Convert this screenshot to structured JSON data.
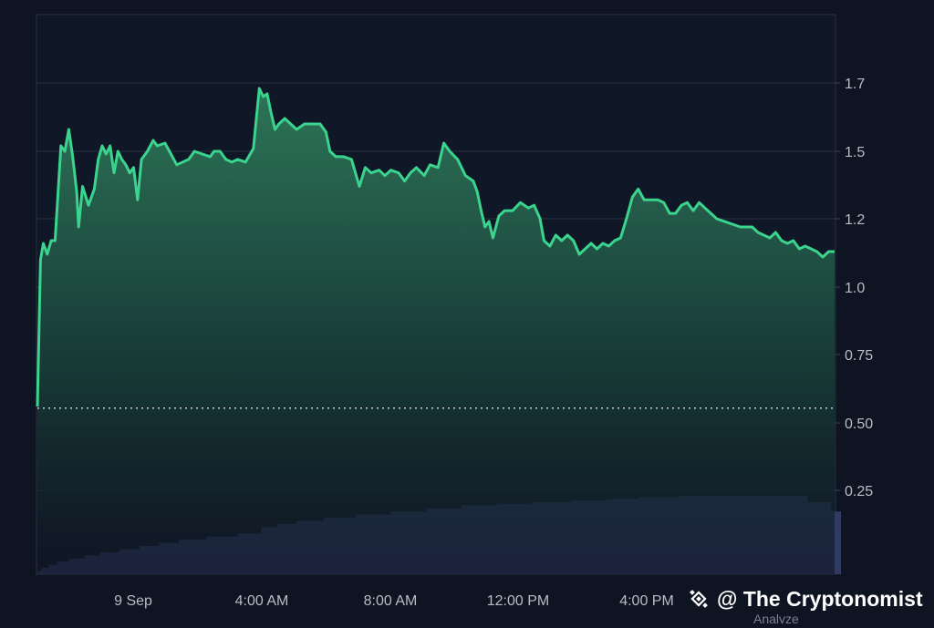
{
  "watermark": {
    "text": "@ The Cryptonomist",
    "icon": "binance-diamond-icon"
  },
  "background_label": "Analyze",
  "chart_data": {
    "type": "area",
    "title": "",
    "xlabel": "",
    "ylabel": "",
    "grid": true,
    "colors": {
      "background": "#0f1422",
      "grid": "#2a3142",
      "line": "#3bd48f",
      "fill_top": "#2e7a5a",
      "volume": "#2f3a66",
      "baseline": "#c8ccd6"
    },
    "x_ticks": [
      "9 Sep",
      "4:00 AM",
      "8:00 AM",
      "12:00 PM",
      "4:00 PM"
    ],
    "x_range": [
      0,
      24.6
    ],
    "y_ticks": [
      "1.7",
      "1.5",
      "1.2",
      "1.0",
      "0.75",
      "0.50",
      "0.25"
    ],
    "y_tick_values": [
      1.75,
      1.5,
      1.25,
      1.0,
      0.75,
      0.5,
      0.25
    ],
    "ylim": [
      0.25,
      2.0
    ],
    "reference_line": 0.554,
    "series": [
      {
        "values": [
          [
            0,
            0.56
          ],
          [
            0.08,
            1.1
          ],
          [
            0.15,
            1.16
          ],
          [
            0.25,
            1.12
          ],
          [
            0.35,
            1.17
          ],
          [
            0.45,
            1.17
          ],
          [
            0.6,
            1.52
          ],
          [
            0.7,
            1.5
          ],
          [
            0.8,
            1.58
          ],
          [
            0.9,
            1.48
          ],
          [
            1.0,
            1.35
          ],
          [
            1.05,
            1.22
          ],
          [
            1.15,
            1.37
          ],
          [
            1.3,
            1.3
          ],
          [
            1.45,
            1.36
          ],
          [
            1.55,
            1.47
          ],
          [
            1.65,
            1.52
          ],
          [
            1.75,
            1.49
          ],
          [
            1.85,
            1.52
          ],
          [
            1.95,
            1.42
          ],
          [
            2.05,
            1.5
          ],
          [
            2.15,
            1.47
          ],
          [
            2.25,
            1.45
          ],
          [
            2.35,
            1.42
          ],
          [
            2.45,
            1.44
          ],
          [
            2.55,
            1.32
          ],
          [
            2.65,
            1.47
          ],
          [
            2.8,
            1.5
          ],
          [
            2.95,
            1.54
          ],
          [
            3.05,
            1.52
          ],
          [
            3.25,
            1.53
          ],
          [
            3.4,
            1.49
          ],
          [
            3.55,
            1.45
          ],
          [
            3.7,
            1.46
          ],
          [
            3.85,
            1.47
          ],
          [
            4.0,
            1.5
          ],
          [
            4.2,
            1.49
          ],
          [
            4.4,
            1.48
          ],
          [
            4.5,
            1.5
          ],
          [
            4.65,
            1.5
          ],
          [
            4.8,
            1.47
          ],
          [
            4.95,
            1.46
          ],
          [
            5.1,
            1.47
          ],
          [
            5.3,
            1.46
          ],
          [
            5.5,
            1.51
          ],
          [
            5.65,
            1.73
          ],
          [
            5.75,
            1.7
          ],
          [
            5.85,
            1.71
          ],
          [
            5.95,
            1.64
          ],
          [
            6.05,
            1.58
          ],
          [
            6.15,
            1.6
          ],
          [
            6.3,
            1.62
          ],
          [
            6.45,
            1.6
          ],
          [
            6.6,
            1.58
          ],
          [
            6.8,
            1.6
          ],
          [
            7.0,
            1.6
          ],
          [
            7.2,
            1.6
          ],
          [
            7.35,
            1.57
          ],
          [
            7.45,
            1.5
          ],
          [
            7.6,
            1.48
          ],
          [
            7.8,
            1.48
          ],
          [
            8.0,
            1.47
          ],
          [
            8.1,
            1.42
          ],
          [
            8.2,
            1.37
          ],
          [
            8.35,
            1.44
          ],
          [
            8.5,
            1.42
          ],
          [
            8.7,
            1.43
          ],
          [
            8.85,
            1.41
          ],
          [
            9.0,
            1.43
          ],
          [
            9.2,
            1.42
          ],
          [
            9.35,
            1.39
          ],
          [
            9.5,
            1.42
          ],
          [
            9.65,
            1.44
          ],
          [
            9.85,
            1.41
          ],
          [
            10.0,
            1.45
          ],
          [
            10.2,
            1.44
          ],
          [
            10.35,
            1.53
          ],
          [
            10.5,
            1.5
          ],
          [
            10.7,
            1.47
          ],
          [
            10.9,
            1.41
          ],
          [
            11.1,
            1.39
          ],
          [
            11.2,
            1.35
          ],
          [
            11.3,
            1.28
          ],
          [
            11.4,
            1.22
          ],
          [
            11.5,
            1.24
          ],
          [
            11.6,
            1.18
          ],
          [
            11.75,
            1.26
          ],
          [
            11.9,
            1.28
          ],
          [
            12.1,
            1.28
          ],
          [
            12.3,
            1.31
          ],
          [
            12.5,
            1.29
          ],
          [
            12.65,
            1.3
          ],
          [
            12.8,
            1.25
          ],
          [
            12.9,
            1.17
          ],
          [
            13.05,
            1.15
          ],
          [
            13.2,
            1.19
          ],
          [
            13.35,
            1.17
          ],
          [
            13.5,
            1.19
          ],
          [
            13.65,
            1.17
          ],
          [
            13.8,
            1.12
          ],
          [
            13.95,
            1.14
          ],
          [
            14.1,
            1.16
          ],
          [
            14.25,
            1.14
          ],
          [
            14.4,
            1.16
          ],
          [
            14.55,
            1.15
          ],
          [
            14.7,
            1.17
          ],
          [
            14.85,
            1.18
          ],
          [
            15.0,
            1.25
          ],
          [
            15.15,
            1.33
          ],
          [
            15.3,
            1.36
          ],
          [
            15.45,
            1.32
          ],
          [
            15.6,
            1.32
          ],
          [
            15.8,
            1.32
          ],
          [
            15.95,
            1.31
          ],
          [
            16.1,
            1.27
          ],
          [
            16.25,
            1.27
          ],
          [
            16.4,
            1.3
          ],
          [
            16.55,
            1.31
          ],
          [
            16.7,
            1.28
          ],
          [
            16.85,
            1.31
          ],
          [
            17.0,
            1.29
          ],
          [
            17.15,
            1.27
          ],
          [
            17.3,
            1.25
          ],
          [
            17.5,
            1.24
          ],
          [
            17.7,
            1.23
          ],
          [
            17.9,
            1.22
          ],
          [
            18.05,
            1.22
          ],
          [
            18.2,
            1.22
          ],
          [
            18.35,
            1.2
          ],
          [
            18.5,
            1.19
          ],
          [
            18.65,
            1.18
          ],
          [
            18.8,
            1.2
          ],
          [
            18.95,
            1.17
          ],
          [
            19.1,
            1.16
          ],
          [
            19.25,
            1.17
          ],
          [
            19.4,
            1.14
          ],
          [
            19.55,
            1.15
          ],
          [
            19.7,
            1.14
          ],
          [
            19.85,
            1.13
          ],
          [
            20.0,
            1.11
          ],
          [
            20.15,
            1.13
          ],
          [
            20.3,
            1.13
          ]
        ]
      }
    ],
    "volume": {
      "values": [
        [
          0.1,
          0.01
        ],
        [
          0.3,
          0.02
        ],
        [
          0.5,
          0.03
        ],
        [
          0.8,
          0.04
        ],
        [
          1.2,
          0.05
        ],
        [
          1.6,
          0.06
        ],
        [
          2.1,
          0.07
        ],
        [
          2.6,
          0.08
        ],
        [
          3.1,
          0.09
        ],
        [
          3.6,
          0.1
        ],
        [
          4.3,
          0.11
        ],
        [
          5.1,
          0.12
        ],
        [
          5.7,
          0.13
        ],
        [
          6.1,
          0.15
        ],
        [
          6.6,
          0.16
        ],
        [
          7.3,
          0.17
        ],
        [
          8.1,
          0.18
        ],
        [
          9.0,
          0.19
        ],
        [
          9.9,
          0.2
        ],
        [
          10.8,
          0.21
        ],
        [
          11.7,
          0.22
        ],
        [
          12.6,
          0.225
        ],
        [
          13.6,
          0.23
        ],
        [
          14.5,
          0.235
        ],
        [
          15.3,
          0.24
        ],
        [
          16.3,
          0.245
        ],
        [
          17.5,
          0.25
        ],
        [
          18.6,
          0.25
        ],
        [
          19.6,
          0.25
        ],
        [
          20.2,
          0.23
        ],
        [
          20.45,
          0.2
        ]
      ]
    }
  }
}
